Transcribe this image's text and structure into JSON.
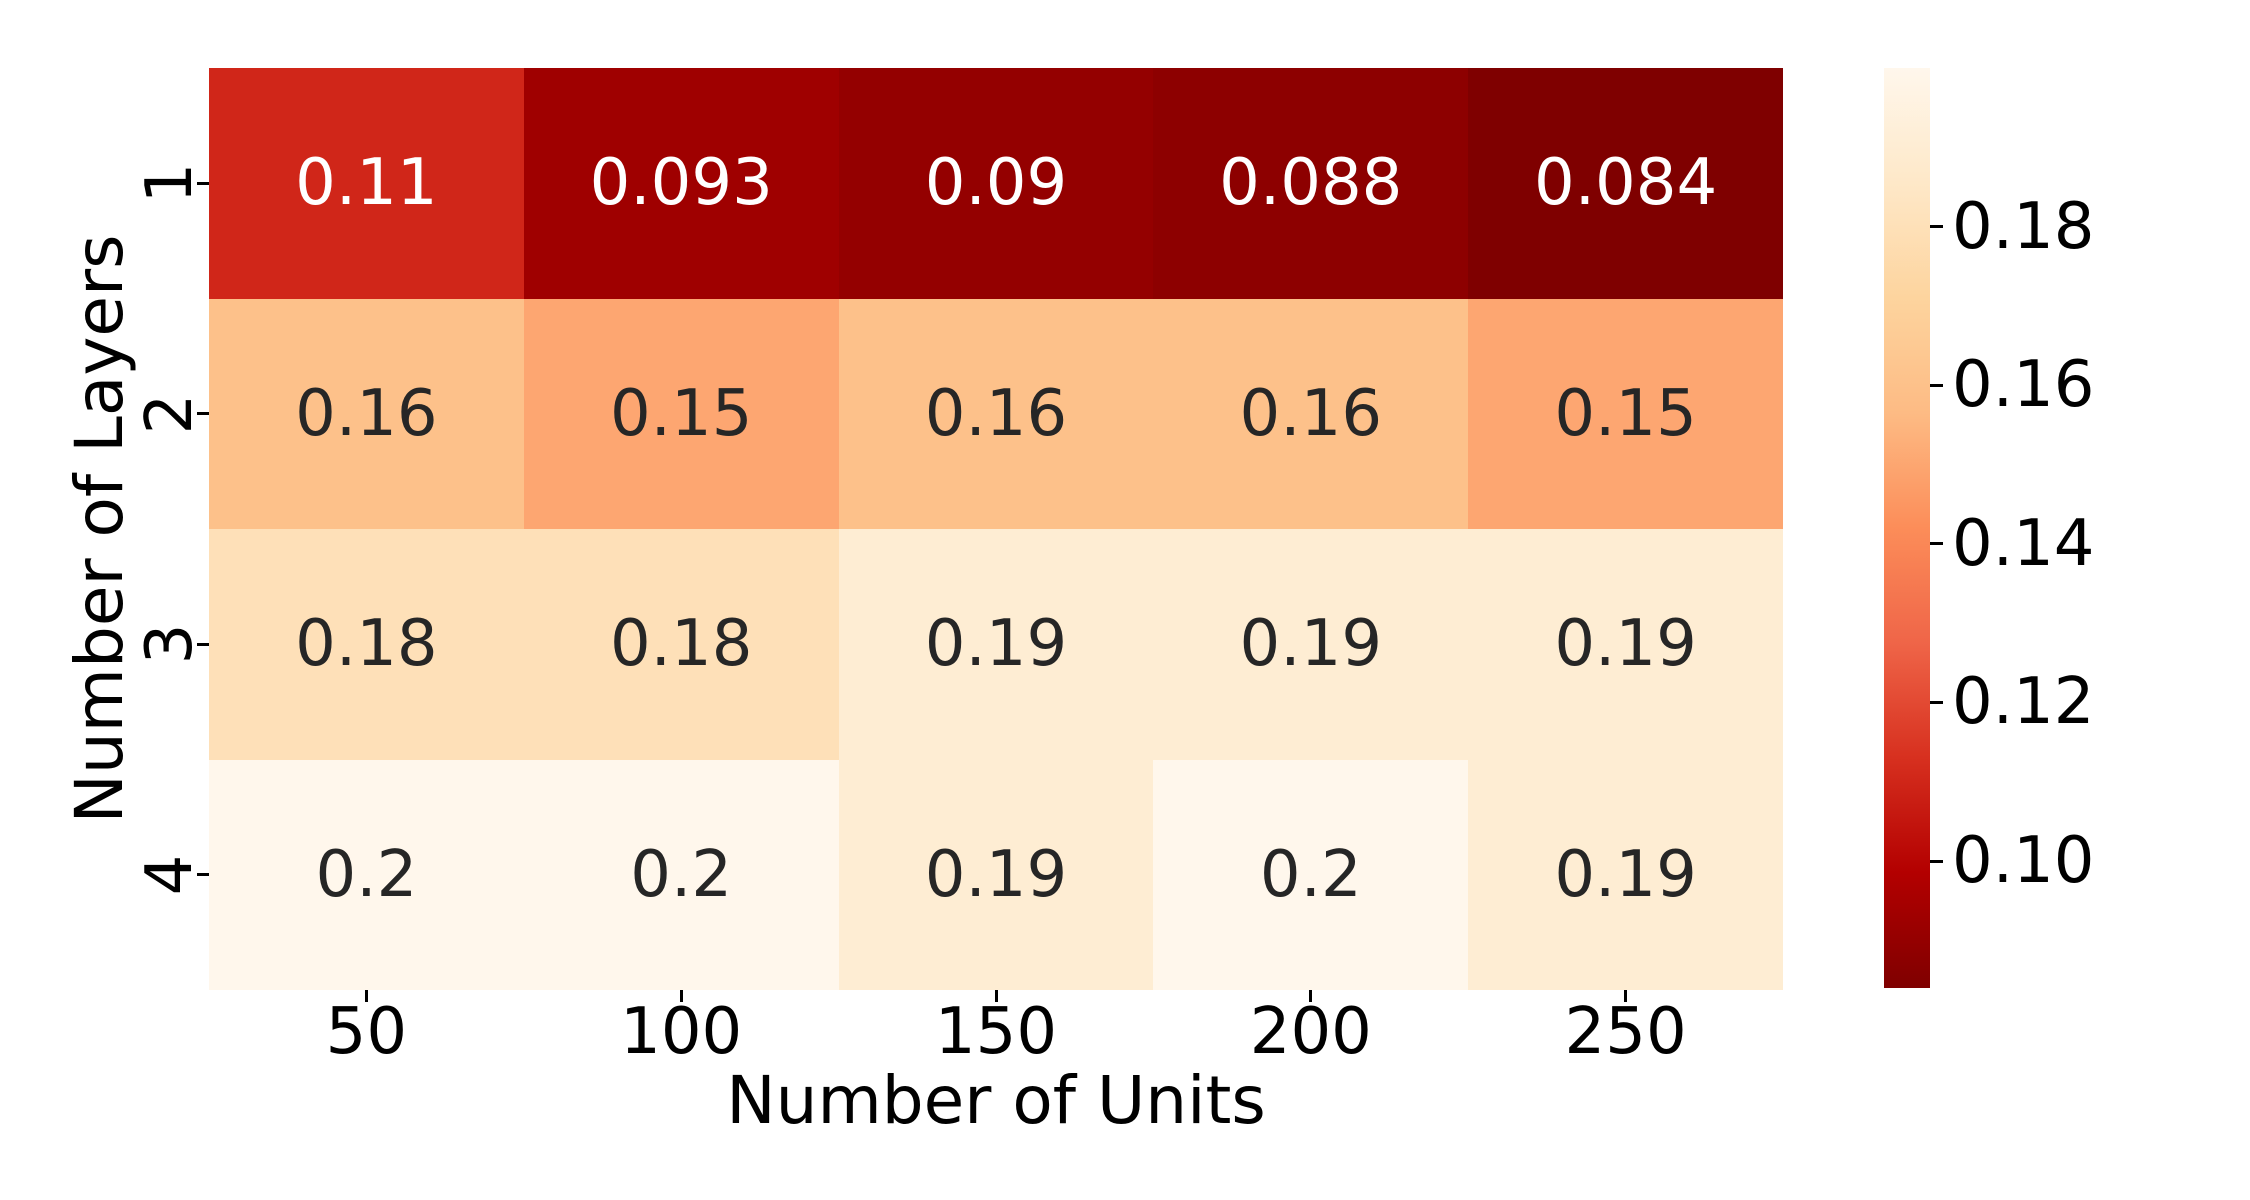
{
  "chart_data": {
    "type": "heatmap",
    "title": "",
    "xlabel": "Number of Units",
    "ylabel": "Number of Layers",
    "x_categories": [
      "50",
      "100",
      "150",
      "200",
      "250"
    ],
    "y_categories": [
      "1",
      "2",
      "3",
      "4"
    ],
    "values": [
      [
        0.11,
        0.093,
        0.09,
        0.088,
        0.084
      ],
      [
        0.16,
        0.15,
        0.16,
        0.16,
        0.15
      ],
      [
        0.18,
        0.18,
        0.19,
        0.19,
        0.19
      ],
      [
        0.2,
        0.2,
        0.19,
        0.2,
        0.19
      ]
    ],
    "cell_labels": [
      [
        "0.11",
        "0.093",
        "0.09",
        "0.088",
        "0.084"
      ],
      [
        "0.16",
        "0.15",
        "0.16",
        "0.16",
        "0.15"
      ],
      [
        "0.18",
        "0.18",
        "0.19",
        "0.19",
        "0.19"
      ],
      [
        "0.2",
        "0.2",
        "0.19",
        "0.2",
        "0.19"
      ]
    ],
    "cell_colors": [
      [
        "#d02619",
        "#9f0000",
        "#940000",
        "#8d0000",
        "#7f0000"
      ],
      [
        "#fdc18a",
        "#fda671",
        "#fdc18a",
        "#fdc18a",
        "#fda671"
      ],
      [
        "#fee0b8",
        "#fee0b8",
        "#feedd3",
        "#feedd3",
        "#feedd3"
      ],
      [
        "#fff7ec",
        "#fff7ec",
        "#feedd3",
        "#fff7ec",
        "#feedd3"
      ]
    ],
    "cell_text_colors": [
      [
        "#ffffff",
        "#ffffff",
        "#ffffff",
        "#ffffff",
        "#ffffff"
      ],
      [
        "#262626",
        "#262626",
        "#262626",
        "#262626",
        "#262626"
      ],
      [
        "#262626",
        "#262626",
        "#262626",
        "#262626",
        "#262626"
      ],
      [
        "#262626",
        "#262626",
        "#262626",
        "#262626",
        "#262626"
      ]
    ],
    "colormap": "OrRd_r",
    "vmin": 0.084,
    "vmax": 0.2,
    "grid": false,
    "colorbar": {
      "position": "right",
      "tick_labels": [
        "0.18",
        "0.16",
        "0.14",
        "0.12",
        "0.10"
      ],
      "tick_values": [
        0.18,
        0.16,
        0.14,
        0.12,
        0.1
      ],
      "gradient_top_to_bottom": [
        "#fff7ec",
        "#fee8c8",
        "#fdd49e",
        "#fdbb84",
        "#fc8d59",
        "#ef6548",
        "#d7301f",
        "#b30000",
        "#7f0000"
      ]
    }
  }
}
